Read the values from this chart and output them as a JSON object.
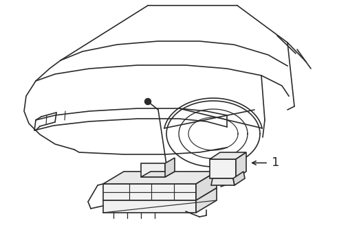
{
  "background_color": "#ffffff",
  "line_color": "#2a2a2a",
  "line_width": 1.2,
  "fig_width": 4.9,
  "fig_height": 3.6,
  "dpi": 100,
  "label_1_text": "1"
}
